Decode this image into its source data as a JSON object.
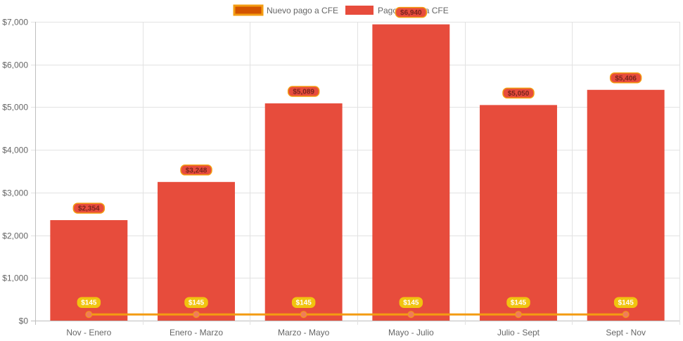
{
  "chart_data": {
    "type": "bar",
    "categories": [
      "Nov - Enero",
      "Enero - Marzo",
      "Marzo - Mayo",
      "Mayo - Julio",
      "Julio - Sept",
      "Sept - Nov"
    ],
    "series": [
      {
        "name": "Pago actual a CFE",
        "kind": "bar",
        "color": "#e74c3c",
        "label_color": "#e74c3c",
        "label_border": "#f39c12",
        "label_text_color": "#7b241c",
        "values": [
          2354,
          3248,
          5089,
          6940,
          5050,
          5406
        ],
        "labels": [
          "$2,354",
          "$3,248",
          "$5,089",
          "$6,940",
          "$5,050",
          "$5,406"
        ]
      },
      {
        "name": "Nuevo pago a CFE",
        "kind": "line",
        "color": "#f39c12",
        "point_color": "#f07c5a",
        "legend_fill": "#d35400",
        "label_color": "#f1c40f",
        "label_text_color": "#ffffff",
        "values": [
          145,
          145,
          145,
          145,
          145,
          145
        ],
        "labels": [
          "$145",
          "$145",
          "$145",
          "$145",
          "$145",
          "$145"
        ]
      }
    ],
    "y_ticks": [
      {
        "value": 0,
        "label": "$0"
      },
      {
        "value": 1000,
        "label": "$1,000"
      },
      {
        "value": 2000,
        "label": "$2,000"
      },
      {
        "value": 3000,
        "label": "$3,000"
      },
      {
        "value": 4000,
        "label": "$4,000"
      },
      {
        "value": 5000,
        "label": "$5,000"
      },
      {
        "value": 6000,
        "label": "$6,000"
      },
      {
        "value": 7000,
        "label": "$7,000"
      }
    ],
    "ylim": [
      0,
      7000
    ],
    "grid": true,
    "legend_position": "top-center",
    "title": "",
    "xlabel": "",
    "ylabel": ""
  }
}
